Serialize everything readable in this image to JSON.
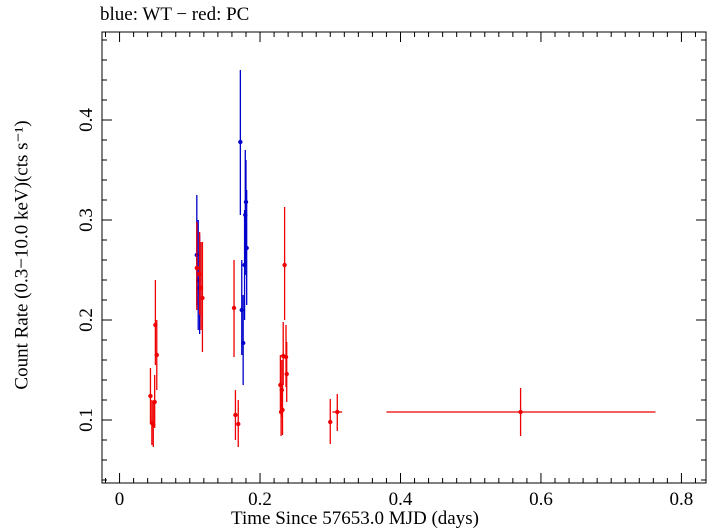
{
  "chart_data": {
    "type": "scatter",
    "title": "blue: WT − red: PC",
    "xlabel": "Time Since 57653.0 MJD (days)",
    "ylabel": "Count Rate (0.3−10.0 keV)(cts s⁻¹)",
    "xlim": [
      -0.025,
      0.835
    ],
    "ylim": [
      0.037,
      0.488
    ],
    "xticks": [
      0,
      0.2,
      0.4,
      0.6,
      0.8
    ],
    "xtick_labels": [
      "0",
      "0.2",
      "0.4",
      "0.6",
      "0.8"
    ],
    "yticks": [
      0.1,
      0.2,
      0.3,
      0.4
    ],
    "ytick_labels": [
      "0.1",
      "0.2",
      "0.3",
      "0.4"
    ],
    "grid": false,
    "colors": {
      "WT": "#0000cc",
      "PC": "#ee0000"
    },
    "series": [
      {
        "points": [
          {
            "x": 0.11,
            "y": 0.265,
            "ylo": 0.215,
            "yhi": 0.325
          },
          {
            "x": 0.112,
            "y": 0.24,
            "ylo": 0.19,
            "yhi": 0.3
          },
          {
            "x": 0.114,
            "y": 0.232,
            "ylo": 0.186,
            "yhi": 0.285
          },
          {
            "x": 0.172,
            "y": 0.378,
            "ylo": 0.305,
            "yhi": 0.45
          },
          {
            "x": 0.174,
            "y": 0.21,
            "ylo": 0.165,
            "yhi": 0.26
          },
          {
            "x": 0.176,
            "y": 0.177,
            "ylo": 0.135,
            "yhi": 0.225
          },
          {
            "x": 0.178,
            "y": 0.255,
            "ylo": 0.2,
            "yhi": 0.31
          },
          {
            "x": 0.179,
            "y": 0.305,
            "ylo": 0.245,
            "yhi": 0.37
          },
          {
            "x": 0.18,
            "y": 0.318,
            "ylo": 0.255,
            "yhi": 0.36
          },
          {
            "x": 0.181,
            "y": 0.272,
            "ylo": 0.215,
            "yhi": 0.33
          }
        ]
      },
      {
        "points": [
          {
            "x": 0.044,
            "y": 0.124,
            "ylo": 0.098,
            "yhi": 0.152
          },
          {
            "x": 0.046,
            "y": 0.097,
            "ylo": 0.075,
            "yhi": 0.12
          },
          {
            "x": 0.048,
            "y": 0.095,
            "ylo": 0.073,
            "yhi": 0.118
          },
          {
            "x": 0.05,
            "y": 0.118,
            "ylo": 0.092,
            "yhi": 0.145
          },
          {
            "x": 0.051,
            "y": 0.195,
            "ylo": 0.155,
            "yhi": 0.24
          },
          {
            "x": 0.053,
            "y": 0.165,
            "ylo": 0.13,
            "yhi": 0.2
          },
          {
            "x": 0.11,
            "y": 0.252,
            "ylo": 0.21,
            "yhi": 0.298
          },
          {
            "x": 0.114,
            "y": 0.246,
            "ylo": 0.205,
            "yhi": 0.288
          },
          {
            "x": 0.116,
            "y": 0.232,
            "ylo": 0.19,
            "yhi": 0.278
          },
          {
            "x": 0.118,
            "y": 0.222,
            "ylo": 0.168,
            "yhi": 0.278
          },
          {
            "x": 0.163,
            "y": 0.212,
            "ylo": 0.163,
            "yhi": 0.26
          },
          {
            "x": 0.165,
            "y": 0.105,
            "ylo": 0.08,
            "yhi": 0.13
          },
          {
            "x": 0.169,
            "y": 0.096,
            "ylo": 0.073,
            "yhi": 0.12
          },
          {
            "x": 0.229,
            "y": 0.135,
            "ylo": 0.108,
            "yhi": 0.165
          },
          {
            "x": 0.23,
            "y": 0.108,
            "ylo": 0.084,
            "yhi": 0.132
          },
          {
            "x": 0.231,
            "y": 0.13,
            "ylo": 0.103,
            "yhi": 0.16
          },
          {
            "x": 0.232,
            "y": 0.11,
            "ylo": 0.085,
            "yhi": 0.136
          },
          {
            "x": 0.233,
            "y": 0.164,
            "ylo": 0.135,
            "yhi": 0.198
          },
          {
            "x": 0.235,
            "y": 0.255,
            "ylo": 0.2,
            "yhi": 0.313
          },
          {
            "x": 0.237,
            "y": 0.163,
            "ylo": 0.133,
            "yhi": 0.195
          },
          {
            "x": 0.238,
            "y": 0.146,
            "ylo": 0.118,
            "yhi": 0.178
          },
          {
            "x": 0.3,
            "y": 0.098,
            "ylo": 0.076,
            "yhi": 0.121
          },
          {
            "x": 0.31,
            "y": 0.108,
            "xlo": 0.303,
            "xhi": 0.317,
            "ylo": 0.089,
            "yhi": 0.126
          },
          {
            "x": 0.571,
            "y": 0.108,
            "xlo": 0.38,
            "xhi": 0.763,
            "ylo": 0.084,
            "yhi": 0.132
          }
        ]
      }
    ]
  }
}
